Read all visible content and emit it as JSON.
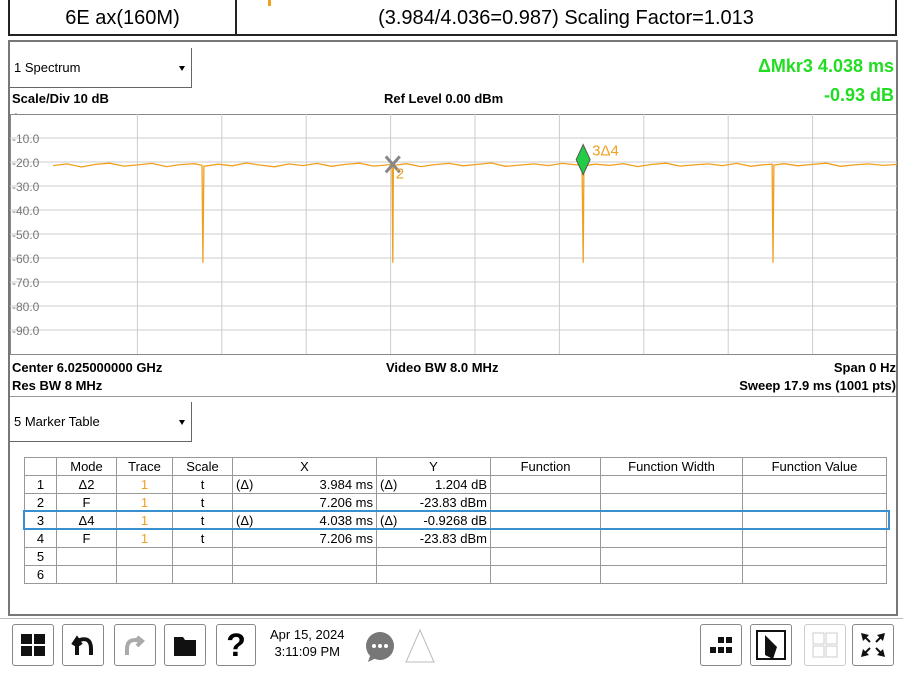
{
  "header": {
    "mode": "6E ax(160M)",
    "info": "(3.984/4.036=0.987) Scaling Factor=1.013"
  },
  "spectrum": {
    "window": "1 Spectrum",
    "marker_readout": "ΔMkr3  4.038 ms",
    "marker_value": "-0.93 dB",
    "scale": "Scale/Div 10 dB",
    "ref_level": "Ref Level 0.00 dBm",
    "scale_type": "Log",
    "center": "Center 6.025000000 GHz",
    "video_bw": "Video BW 8.0 MHz",
    "span": "Span 0 Hz",
    "res_bw": "Res BW 8 MHz",
    "sweep": "Sweep 17.9 ms (1001 pts)"
  },
  "plot": {
    "xlim": [
      0,
      17.9
    ],
    "ylim": [
      -100,
      0
    ],
    "color": "#f0a020",
    "yticks": [
      {
        "value": -10,
        "label": "-10.0"
      },
      {
        "value": -20,
        "label": "-20.0"
      },
      {
        "value": -30,
        "label": "-30.0"
      },
      {
        "value": -40,
        "label": "-40.0"
      },
      {
        "value": -50,
        "label": "-50.0"
      },
      {
        "value": -60,
        "label": "-60.0"
      },
      {
        "value": -70,
        "label": "-70.0"
      },
      {
        "value": -80,
        "label": "-80.0"
      },
      {
        "value": -90,
        "label": "-90.0"
      }
    ],
    "trace": {
      "x": [
        0,
        0.3,
        0.6,
        0.9,
        1.2,
        1.5,
        1.8,
        2.1,
        2.4,
        2.7,
        3.0,
        3.16,
        3.18,
        3.2,
        3.5,
        3.8,
        4.1,
        4.4,
        4.7,
        5.0,
        5.3,
        5.6,
        5.9,
        6.2,
        6.5,
        6.8,
        7.1,
        7.19,
        7.206,
        7.22,
        7.5,
        7.8,
        8.1,
        8.4,
        8.7,
        9.0,
        9.3,
        9.6,
        9.9,
        10.2,
        10.5,
        10.8,
        11.1,
        11.22,
        11.244,
        11.26,
        11.5,
        11.8,
        12.1,
        12.4,
        12.7,
        13.0,
        13.3,
        13.6,
        13.9,
        14.2,
        14.5,
        14.8,
        15.1,
        15.25,
        15.27,
        15.29,
        15.5,
        15.8,
        16.1,
        16.4,
        16.7,
        17.0,
        17.3,
        17.6,
        17.9
      ],
      "y": [
        -21.5,
        -20.8,
        -22.1,
        -21.0,
        -20.5,
        -21.7,
        -21.2,
        -20.6,
        -21.9,
        -21.1,
        -20.7,
        -21.4,
        -62,
        -21.8,
        -20.9,
        -21.6,
        -20.4,
        -21.3,
        -22.0,
        -20.8,
        -21.5,
        -20.6,
        -21.8,
        -21.0,
        -20.5,
        -21.7,
        -21.2,
        -20.9,
        -62,
        -21.4,
        -20.7,
        -21.9,
        -21.1,
        -20.6,
        -21.6,
        -21.0,
        -20.4,
        -21.8,
        -21.3,
        -20.8,
        -21.5,
        -20.6,
        -21.2,
        -21.0,
        -62,
        -21.6,
        -20.9,
        -21.4,
        -20.7,
        -21.9,
        -21.0,
        -20.5,
        -21.7,
        -21.2,
        -20.8,
        -21.5,
        -20.6,
        -21.8,
        -21.1,
        -20.9,
        -62,
        -21.3,
        -20.7,
        -21.6,
        -21.0,
        -20.5,
        -21.8,
        -21.2,
        -20.8,
        -21.4,
        -21.0
      ]
    },
    "markers": [
      {
        "label": "2",
        "x": 7.206,
        "y": -21,
        "symbol": "x"
      },
      {
        "label": "3Δ4",
        "x": 11.244,
        "y": -19,
        "symbol": "diamond"
      }
    ]
  },
  "marker_table": {
    "window": "5 Marker Table",
    "columns": [
      "Mode",
      "Trace",
      "Scale",
      "X",
      "Y",
      "Function",
      "Function Width",
      "Function Value"
    ],
    "selected": 2,
    "rows": [
      {
        "n": "1",
        "mode": "Δ2",
        "trace": "1",
        "scale": "t",
        "x_ref": "(Δ)",
        "x": "3.984 ms",
        "y_ref": "(Δ)",
        "y": "1.204 dB"
      },
      {
        "n": "2",
        "mode": "F",
        "trace": "1",
        "scale": "t",
        "x": "7.206 ms",
        "y": "-23.83 dBm"
      },
      {
        "n": "3",
        "mode": "Δ4",
        "trace": "1",
        "scale": "t",
        "x_ref": "(Δ)",
        "x": "4.038 ms",
        "y_ref": "(Δ)",
        "y": "-0.9268 dB"
      },
      {
        "n": "4",
        "mode": "F",
        "trace": "1",
        "scale": "t",
        "x": "7.206 ms",
        "y": "-23.83 dBm"
      },
      {
        "n": "5"
      },
      {
        "n": "6"
      }
    ]
  },
  "taskbar": {
    "help": "?",
    "date": "Apr 15, 2024",
    "time": "3:11:09 PM"
  }
}
